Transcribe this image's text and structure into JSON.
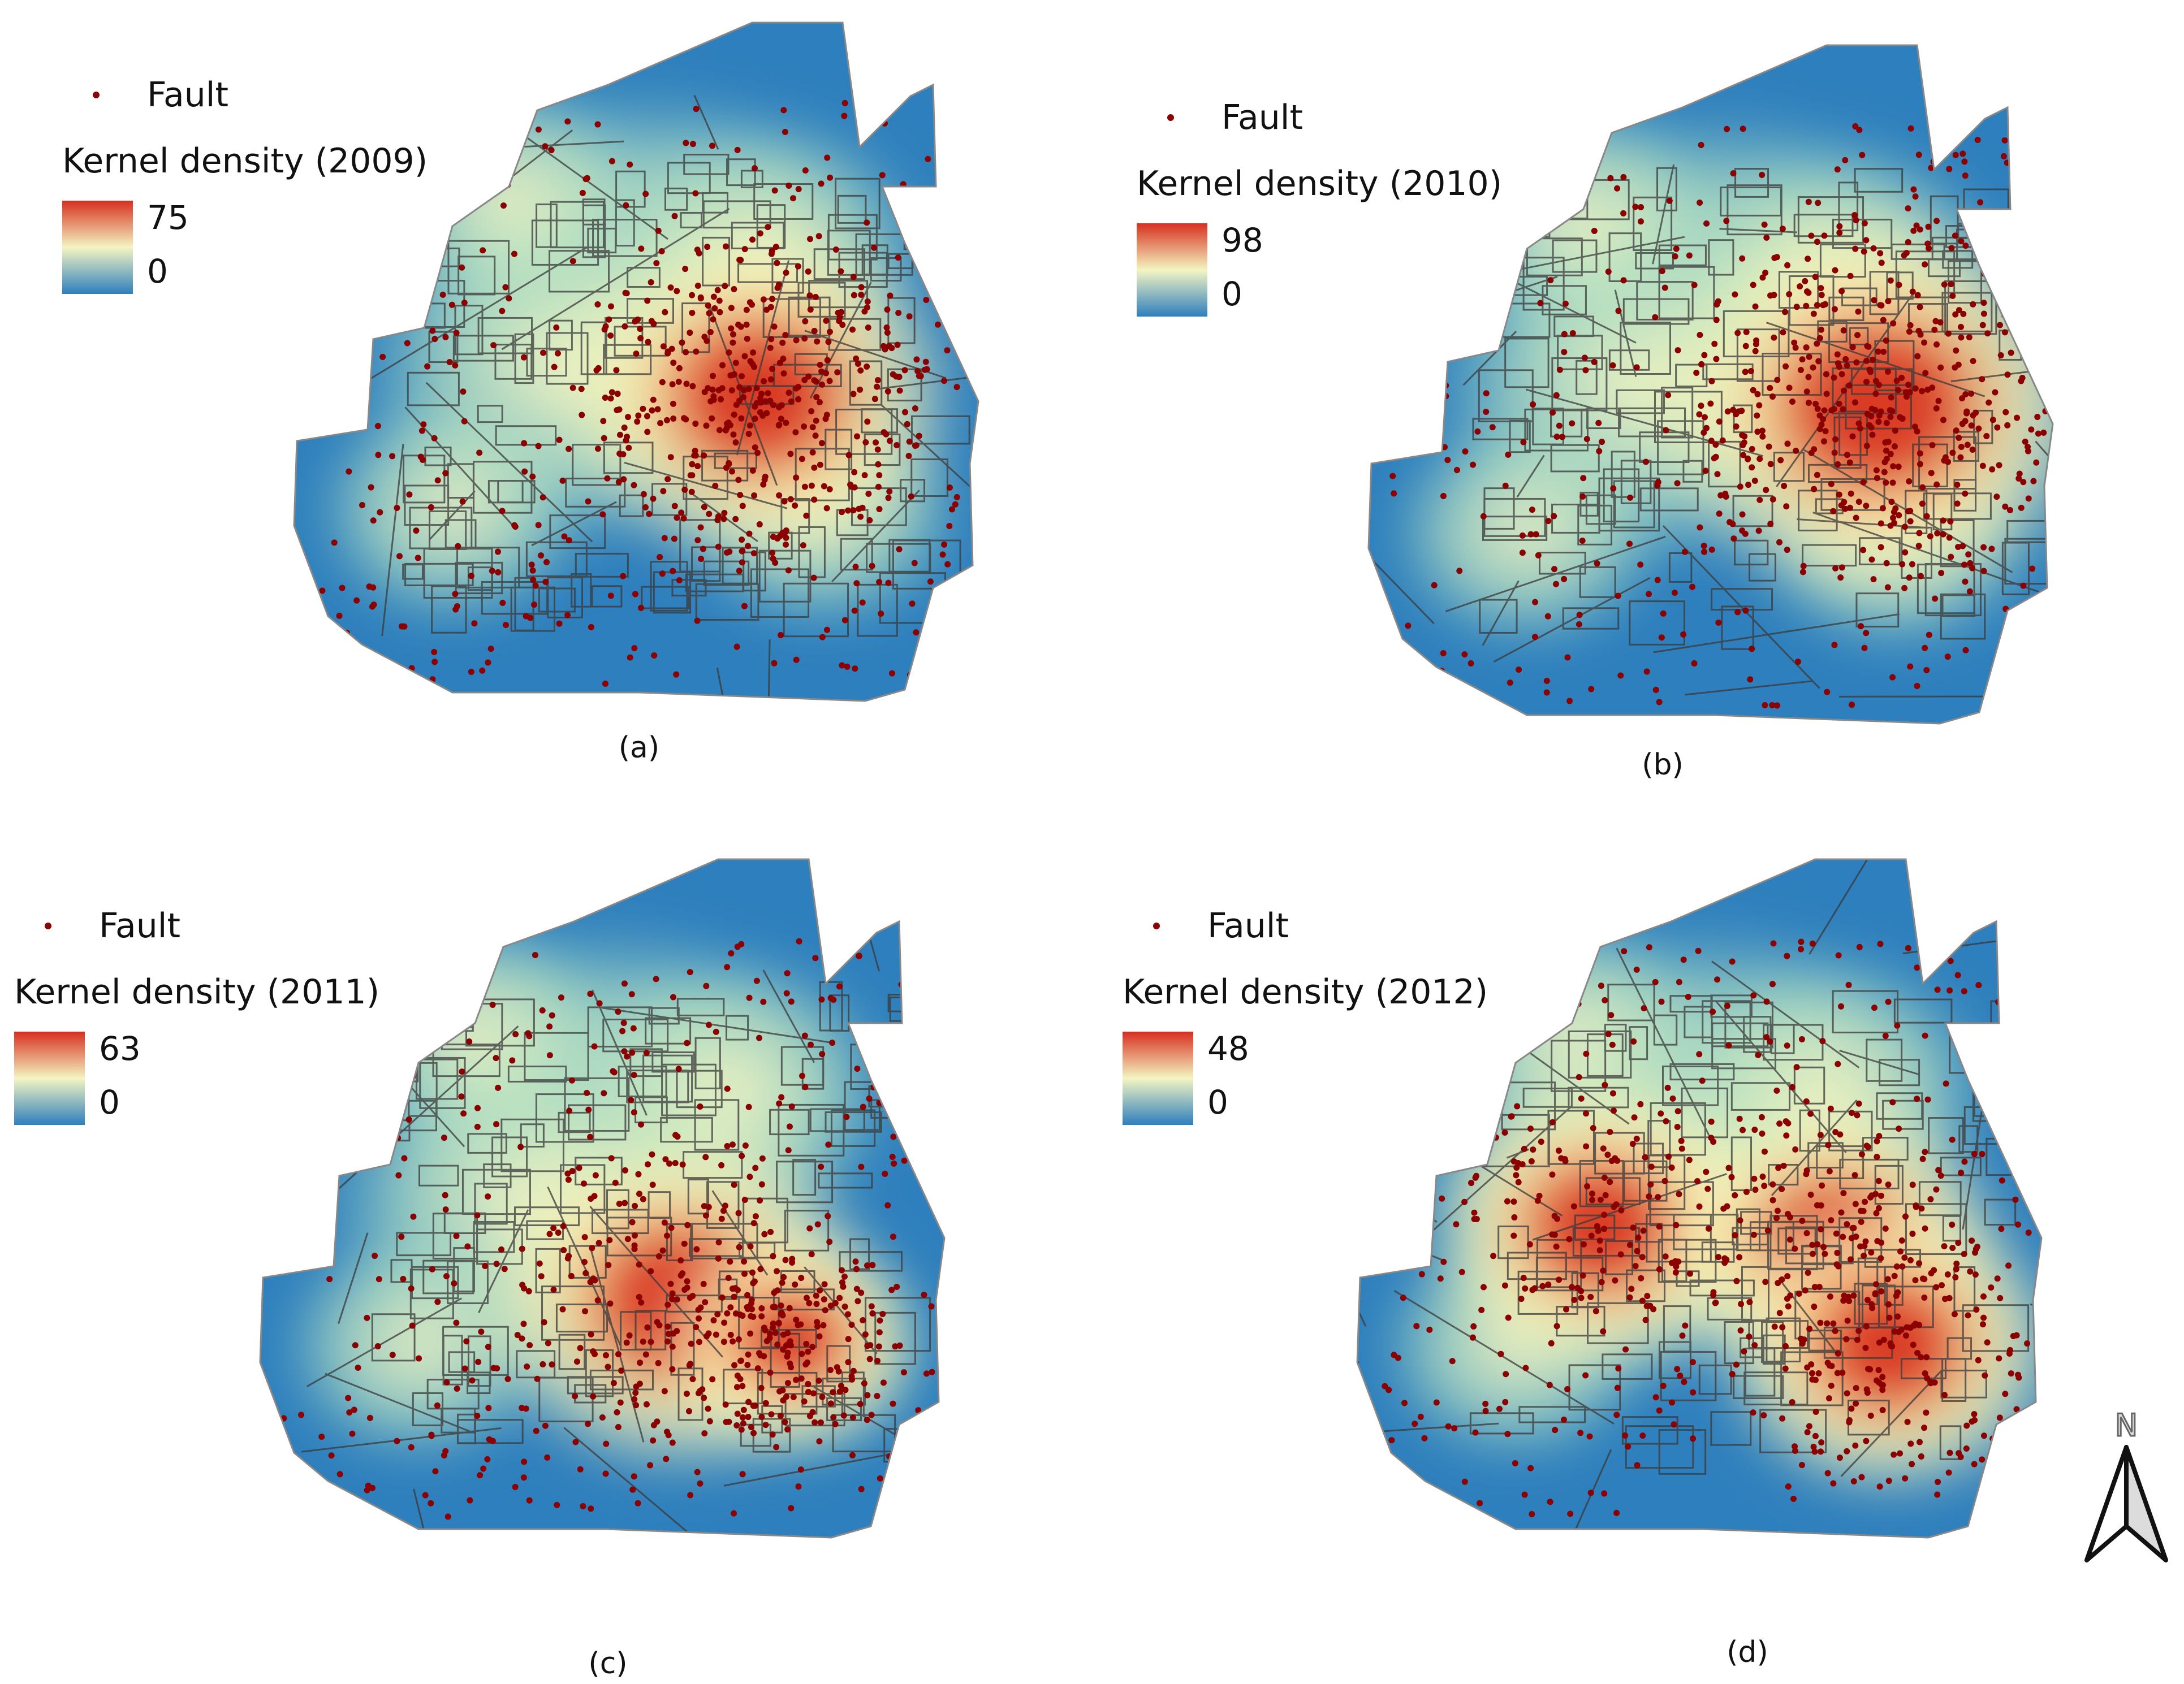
{
  "panels": [
    {
      "id": "a",
      "caption": "(a)",
      "fault_label": "Fault",
      "legend_title": "Kernel density (2009)",
      "max": "75",
      "min": "0"
    },
    {
      "id": "b",
      "caption": "(b)",
      "fault_label": "Fault",
      "legend_title": "Kernel density (2010)",
      "max": "98",
      "min": "0"
    },
    {
      "id": "c",
      "caption": "(c)",
      "fault_label": "Fault",
      "legend_title": "Kernel density (2011)",
      "max": "63",
      "min": "0"
    },
    {
      "id": "d",
      "caption": "(d)",
      "fault_label": "Fault",
      "legend_title": "Kernel density (2012)",
      "max": "48",
      "min": "0"
    }
  ],
  "north_arrow": {
    "letter": "N",
    "icon": "north-arrow-icon"
  },
  "colors": {
    "low": "#2e7fbd",
    "mid_low": "#8fd0c8",
    "mid": "#f4f5c2",
    "mid_high": "#f5b56d",
    "high": "#d7301f",
    "fault_point": "#8b0000",
    "road_line": "#3a3a3a"
  }
}
